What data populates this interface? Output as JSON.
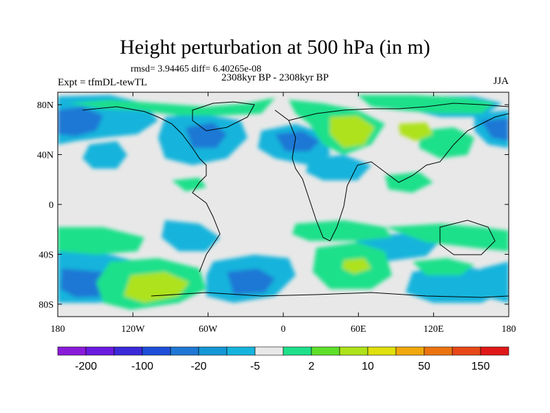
{
  "title": "Height perturbation at 500 hPa (in m)",
  "stats": "rmsd= 3.94465 diff= 6.40265e-08",
  "subtitle": "2308kyr BP - 2308kyr BP",
  "expt": "Expt = tfmDL-tewTL",
  "season": "JJA",
  "map": {
    "lat_labels": [
      "80N",
      "40N",
      "0",
      "40S",
      "80S"
    ],
    "lat_values": [
      80,
      40,
      0,
      -40,
      -80
    ],
    "lon_labels": [
      "180",
      "120W",
      "60W",
      "0",
      "60E",
      "120E",
      "180"
    ],
    "lon_values": [
      -180,
      -120,
      -60,
      0,
      60,
      120,
      180
    ],
    "lat_range": [
      -90,
      90
    ],
    "lon_range": [
      -180,
      180
    ],
    "colors": {
      "land_coast": "#000000",
      "neutral": "#e8e8e8"
    }
  },
  "colorbar": {
    "colors": [
      "#8a1bd9",
      "#6a1ae0",
      "#3a2ad8",
      "#1e4fd8",
      "#1f78d4",
      "#1597d6",
      "#16b4dc",
      "#e8e8e8",
      "#1ee08a",
      "#5ee02a",
      "#aee21a",
      "#e0e00e",
      "#f0a80c",
      "#ec7410",
      "#e84818",
      "#e01818"
    ],
    "labels": [
      "-200",
      "-100",
      "-20",
      "-5",
      "2",
      "10",
      "50",
      "150"
    ],
    "label_after_index": [
      1,
      3,
      5,
      7,
      9,
      11,
      13,
      15
    ]
  }
}
